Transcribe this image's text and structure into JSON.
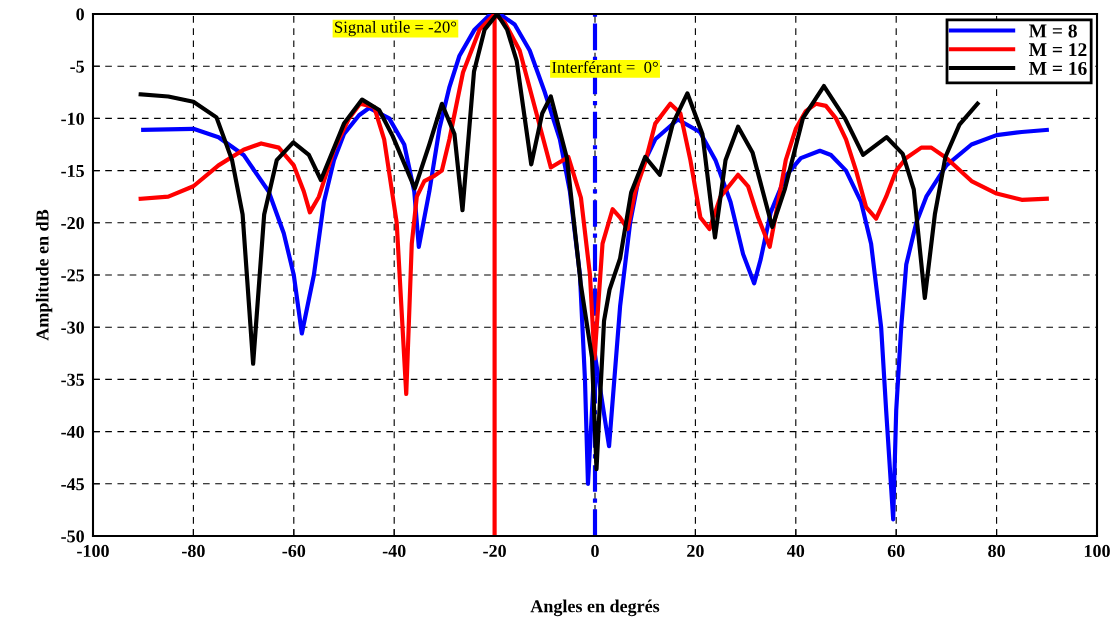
{
  "chart_data": {
    "type": "line",
    "xlabel": "Angles en degrés",
    "ylabel": "Amplitude en dB",
    "xlim": [
      -100,
      100
    ],
    "xticks": [
      -100,
      -80,
      -60,
      -40,
      -20,
      0,
      20,
      40,
      60,
      80,
      100
    ],
    "ylim": [
      -50,
      0
    ],
    "yticks": [
      -50,
      -45,
      -40,
      -35,
      -30,
      -25,
      -20,
      -15,
      -10,
      -5,
      0
    ],
    "grid": true,
    "legend": "top right",
    "line_style": "solid",
    "marker": "none",
    "series": [
      {
        "name": "M = 8",
        "color": "#0000ff",
        "x": [
          -90,
          -80,
          -75,
          -70,
          -65,
          -62,
          -60,
          -58.4,
          -56,
          -54,
          -52,
          -50,
          -47,
          -45,
          -41,
          -38,
          -36,
          -35.1,
          -33,
          -31,
          -29,
          -27,
          -24,
          -21,
          -19,
          -16,
          -13,
          -10,
          -7,
          -5,
          -3,
          -2,
          -1.4,
          0,
          2.8,
          5,
          7,
          9,
          12,
          16.5,
          20.9,
          24,
          27,
          29.5,
          31.7,
          33,
          35,
          38,
          41,
          44.8,
          47,
          50,
          53,
          55,
          57,
          58,
          59.4,
          60,
          61,
          62,
          64,
          66,
          70,
          75,
          80,
          85,
          90
        ],
        "values": [
          -11.1,
          -11.0,
          -11.8,
          -13.5,
          -17,
          -21,
          -25,
          -30.6,
          -25,
          -18,
          -14,
          -11.5,
          -9.7,
          -9.0,
          -10,
          -12.5,
          -17,
          -22.3,
          -17,
          -11,
          -7,
          -4,
          -1.5,
          -0.1,
          0,
          -1,
          -3.5,
          -7.5,
          -12,
          -17,
          -25,
          -35,
          -45,
          -32.7,
          -41.4,
          -28,
          -20,
          -15,
          -12,
          -10.1,
          -11.3,
          -14,
          -18,
          -23,
          -25.8,
          -23.5,
          -19,
          -15.5,
          -13.8,
          -13.1,
          -13.5,
          -15,
          -18,
          -22,
          -30,
          -38,
          -48.4,
          -38,
          -30,
          -24,
          -20,
          -17.5,
          -14.5,
          -12.5,
          -11.6,
          -11.3,
          -11.1
        ]
      },
      {
        "name": "M = 12",
        "color": "#ff0000",
        "x": [
          -90.5,
          -85,
          -80,
          -75,
          -70,
          -66.5,
          -63,
          -60,
          -58,
          -56.8,
          -55,
          -52,
          -49,
          -46.8,
          -44,
          -42,
          -39.5,
          -37.6,
          -36.5,
          -35.5,
          -34,
          -32,
          -30.5,
          -29,
          -26.3,
          -23,
          -20,
          -18,
          -15,
          -12,
          -8.8,
          -5.3,
          -2.8,
          -1,
          -0.1,
          1.5,
          3.5,
          5,
          6.5,
          8,
          10,
          12,
          15,
          17,
          19,
          21,
          22.8,
          25,
          28.5,
          30.5,
          32.5,
          34.8,
          36.5,
          38,
          40,
          42,
          44,
          46,
          48,
          50,
          52,
          54,
          56,
          58,
          60,
          62,
          65,
          67,
          70,
          75,
          80,
          85,
          90
        ],
        "values": [
          -17.7,
          -17.5,
          -16.5,
          -14.5,
          -13,
          -12.4,
          -12.8,
          -14.5,
          -17,
          -19,
          -17.5,
          -13,
          -10,
          -8.6,
          -8.9,
          -12,
          -20,
          -36.4,
          -22,
          -17.5,
          -16,
          -15.5,
          -15,
          -12,
          -5.6,
          -1.5,
          0,
          -0.8,
          -3.5,
          -8.9,
          -14.7,
          -13.7,
          -17.6,
          -25,
          -33,
          -22,
          -18.7,
          -19.5,
          -20.6,
          -17,
          -14.2,
          -10.5,
          -8.6,
          -9.5,
          -14,
          -19.5,
          -20.6,
          -17.5,
          -15.4,
          -16.5,
          -19.5,
          -22.3,
          -18,
          -14,
          -11,
          -9.3,
          -8.6,
          -8.8,
          -10,
          -12,
          -15,
          -18.5,
          -19.6,
          -17.5,
          -15,
          -13.8,
          -12.8,
          -12.8,
          -13.8,
          -16,
          -17.2,
          -17.8,
          -17.7
        ]
      },
      {
        "name": "M = 16",
        "color": "#000000",
        "x": [
          -90.5,
          -85,
          -80,
          -75.4,
          -72.3,
          -70.2,
          -68.1,
          -65.9,
          -63.4,
          -60.1,
          -57,
          -54.6,
          -50,
          -46.4,
          -43,
          -40.3,
          -35.9,
          -33,
          -30.5,
          -28,
          -26.4,
          -24.1,
          -22,
          -19.5,
          -17.5,
          -15.6,
          -12.7,
          -10.5,
          -8.8,
          -5.6,
          -2.8,
          -0.6,
          0.3,
          1.8,
          2.9,
          5,
          7.2,
          10,
          12.9,
          15.5,
          18.4,
          21.4,
          23.9,
          26,
          28.5,
          31.4,
          35.3,
          37.8,
          41.4,
          45.6,
          49.8,
          53.4,
          58.1,
          61.3,
          63.5,
          65.7,
          67.7,
          69.8,
          72.6,
          76.2
        ],
        "values": [
          -7.7,
          -7.9,
          -8.4,
          -9.9,
          -14,
          -19.2,
          -33.5,
          -19.2,
          -14,
          -12.3,
          -13.5,
          -15.9,
          -10.5,
          -8.2,
          -9.2,
          -11.7,
          -16.7,
          -12.5,
          -8.6,
          -11.5,
          -18.8,
          -5.5,
          -1.5,
          0,
          -1.5,
          -4.5,
          -14.4,
          -9.5,
          -7.9,
          -13.8,
          -26,
          -32.9,
          -43.6,
          -29.4,
          -26.4,
          -23.4,
          -17.1,
          -13.7,
          -15.4,
          -10.5,
          -7.6,
          -11.5,
          -21.4,
          -14,
          -10.8,
          -13.3,
          -20.4,
          -16.8,
          -10,
          -6.9,
          -10,
          -13.5,
          -11.8,
          -13.4,
          -16.8,
          -27.2,
          -19.2,
          -13.7,
          -10.6,
          -8.6
        ]
      }
    ],
    "ref_lines": [
      {
        "axis": "x",
        "value": -20,
        "label": "Signal utile = -20°",
        "color": "#ff0000",
        "line_style": "solid"
      },
      {
        "axis": "x",
        "value": 0,
        "label": "Interférant =  0°",
        "color": "#0000ff",
        "line_style": "dashdot"
      }
    ]
  }
}
